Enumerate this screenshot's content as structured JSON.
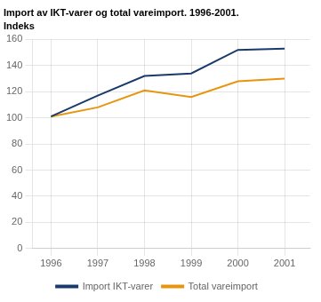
{
  "chart_data": {
    "type": "line",
    "title": "Import av IKT-varer og total vareimport. 1996-2001.",
    "subtitle": "Indeks",
    "x": [
      1996,
      1997,
      1998,
      1999,
      2000,
      2001
    ],
    "series": [
      {
        "name": "Import IKT-varer",
        "color": "#1a3a6b",
        "values": [
          101,
          117,
          132,
          134,
          152,
          153
        ]
      },
      {
        "name": "Total vareimport",
        "color": "#e8950e",
        "values": [
          101,
          108,
          121,
          116,
          128,
          130
        ]
      }
    ],
    "xlim": [
      1995.6,
      2001.55
    ],
    "xticks": [
      1996,
      1997,
      1998,
      1999,
      2000,
      2001
    ],
    "ylim": [
      0,
      160
    ],
    "yticks": [
      0,
      20,
      40,
      60,
      80,
      100,
      120,
      140,
      160
    ],
    "grid": true,
    "legend": "bottom"
  }
}
